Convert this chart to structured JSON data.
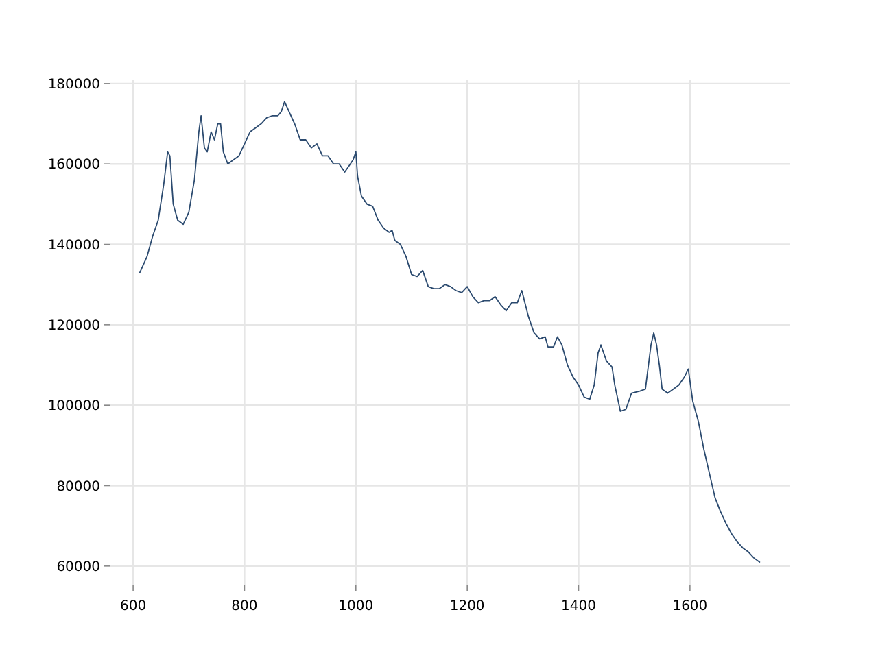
{
  "chart_data": {
    "type": "line",
    "xlim": [
      558,
      1780
    ],
    "ylim": [
      55200,
      181000
    ],
    "xticks": [
      600,
      800,
      1000,
      1200,
      1400,
      1600
    ],
    "yticks": [
      60000,
      80000,
      100000,
      120000,
      140000,
      160000,
      180000
    ],
    "grid": true,
    "series": [
      {
        "color": "#2b4a6f",
        "x": [
          612,
          625,
          635,
          645,
          655,
          662,
          666,
          672,
          680,
          690,
          700,
          710,
          718,
          722,
          728,
          733,
          740,
          746,
          752,
          757,
          762,
          770,
          780,
          790,
          800,
          810,
          820,
          830,
          840,
          850,
          860,
          866,
          872,
          880,
          890,
          900,
          910,
          920,
          930,
          940,
          950,
          960,
          970,
          980,
          990,
          995,
          1000,
          1003,
          1010,
          1020,
          1030,
          1040,
          1050,
          1060,
          1065,
          1070,
          1080,
          1090,
          1100,
          1110,
          1120,
          1130,
          1140,
          1150,
          1160,
          1170,
          1180,
          1190,
          1200,
          1210,
          1220,
          1230,
          1240,
          1250,
          1260,
          1270,
          1280,
          1290,
          1298,
          1310,
          1320,
          1330,
          1340,
          1345,
          1355,
          1362,
          1370,
          1380,
          1390,
          1400,
          1410,
          1420,
          1428,
          1435,
          1440,
          1450,
          1460,
          1465,
          1475,
          1485,
          1495,
          1510,
          1520,
          1530,
          1535,
          1540,
          1545,
          1550,
          1560,
          1570,
          1580,
          1590,
          1597,
          1605,
          1615,
          1625,
          1635,
          1645,
          1655,
          1665,
          1675,
          1685,
          1695,
          1705,
          1715,
          1725
        ],
        "values": [
          133000,
          137000,
          142000,
          146000,
          155000,
          163000,
          162000,
          150000,
          146000,
          145000,
          148000,
          156000,
          168000,
          172000,
          164000,
          163000,
          168000,
          166000,
          170000,
          170000,
          163000,
          160000,
          161000,
          162000,
          165000,
          168000,
          169000,
          170000,
          171500,
          172000,
          172000,
          173000,
          175500,
          173000,
          170000,
          166000,
          166000,
          164000,
          165000,
          162000,
          162000,
          160000,
          160000,
          158000,
          160000,
          161000,
          163000,
          157000,
          152000,
          150000,
          149500,
          146000,
          144000,
          143000,
          143500,
          141000,
          140000,
          137000,
          132500,
          132000,
          133500,
          129500,
          129000,
          129000,
          130000,
          129500,
          128500,
          128000,
          129500,
          127000,
          125500,
          126000,
          126000,
          127000,
          125000,
          123500,
          125500,
          125500,
          128500,
          122000,
          118000,
          116500,
          117000,
          114500,
          114500,
          117000,
          115000,
          110000,
          107000,
          105000,
          102000,
          101500,
          105000,
          113000,
          115000,
          111000,
          109500,
          105000,
          98500,
          99000,
          103000,
          103500,
          104000,
          115000,
          118000,
          115000,
          110000,
          104000,
          103000,
          104000,
          105000,
          107000,
          109000,
          101000,
          96000,
          89000,
          83000,
          77000,
          73500,
          70500,
          68000,
          66000,
          64500,
          63500,
          62000,
          61000
        ]
      }
    ]
  }
}
